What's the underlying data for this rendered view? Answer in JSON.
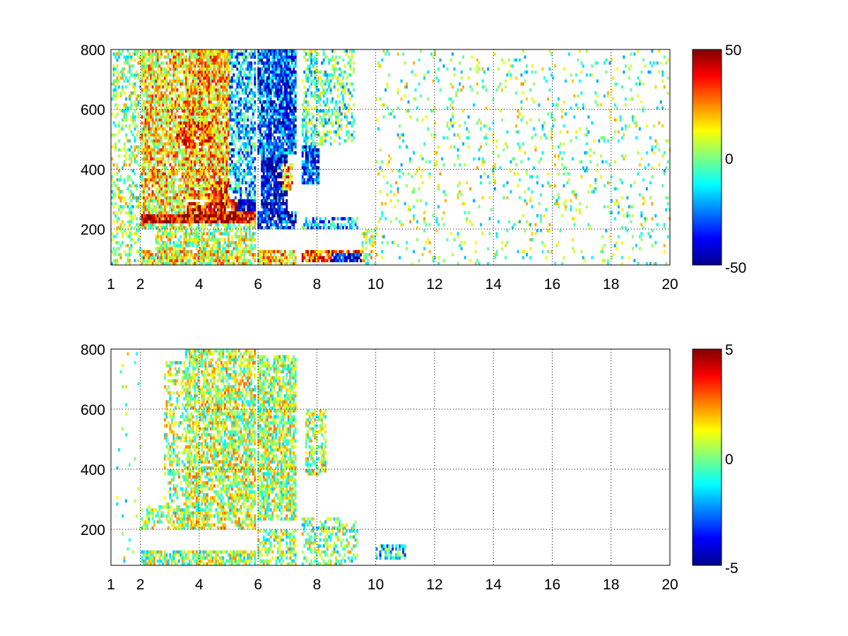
{
  "chart_data": [
    {
      "type": "heatmap",
      "title": "",
      "xlabel": "",
      "ylabel": "",
      "xlim": [
        1,
        20
      ],
      "ylim": [
        80,
        800
      ],
      "x_ticks": [
        "1",
        "2",
        "4",
        "6",
        "8",
        "10",
        "12",
        "14",
        "16",
        "18",
        "20"
      ],
      "y_ticks": [
        "200",
        "400",
        "600",
        "800"
      ],
      "grid": true,
      "colormap": "jet",
      "clim": [
        -50,
        50
      ],
      "colorbar_ticks": [
        "-50",
        "0",
        "50"
      ],
      "regions": [
        {
          "x": [
            1.0,
            2.0
          ],
          "y": [
            80,
            800
          ],
          "value": 2,
          "density": 0.35
        },
        {
          "x": [
            2.0,
            3.5
          ],
          "y": [
            300,
            800
          ],
          "value": 15,
          "density": 0.7
        },
        {
          "x": [
            3.5,
            5.8
          ],
          "y": [
            300,
            800
          ],
          "value": 18,
          "density": 0.85
        },
        {
          "x": [
            3.2,
            4.5
          ],
          "y": [
            480,
            560
          ],
          "value": 30,
          "density": 0.9
        },
        {
          "x": [
            2.0,
            3.5
          ],
          "y": [
            200,
            300
          ],
          "value": 10,
          "density": 0.8
        },
        {
          "x": [
            2.0,
            5.9
          ],
          "y": [
            225,
            255
          ],
          "value": 42,
          "density": 0.95
        },
        {
          "x": [
            3.6,
            5.9
          ],
          "y": [
            255,
            290
          ],
          "value": 38,
          "density": 0.9
        },
        {
          "x": [
            4.3,
            5.9
          ],
          "y": [
            290,
            360
          ],
          "value": 28,
          "density": 0.9
        },
        {
          "x": [
            5.0,
            5.9
          ],
          "y": [
            300,
            800
          ],
          "value": -18,
          "density": 0.6
        },
        {
          "x": [
            5.3,
            5.9
          ],
          "y": [
            265,
            300
          ],
          "value": -45,
          "density": 0.95
        },
        {
          "x": [
            2.0,
            5.9
          ],
          "y": [
            80,
            135
          ],
          "value": 12,
          "density": 0.8
        },
        {
          "x": [
            2.5,
            5.9
          ],
          "y": [
            135,
            220
          ],
          "value": 5,
          "density": 0.6
        },
        {
          "x": [
            6.0,
            7.3
          ],
          "y": [
            450,
            800
          ],
          "value": -30,
          "density": 0.85
        },
        {
          "x": [
            6.1,
            7.0
          ],
          "y": [
            260,
            450
          ],
          "value": -40,
          "density": 0.9
        },
        {
          "x": [
            6.8,
            7.2
          ],
          "y": [
            330,
            420
          ],
          "value": 25,
          "density": 0.8
        },
        {
          "x": [
            6.0,
            7.3
          ],
          "y": [
            200,
            260
          ],
          "value": -35,
          "density": 0.8
        },
        {
          "x": [
            6.0,
            7.3
          ],
          "y": [
            80,
            130
          ],
          "value": 18,
          "density": 0.8
        },
        {
          "x": [
            7.5,
            8.1
          ],
          "y": [
            350,
            480
          ],
          "value": -30,
          "density": 0.8
        },
        {
          "x": [
            7.5,
            9.3
          ],
          "y": [
            480,
            800
          ],
          "value": -5,
          "density": 0.4
        },
        {
          "x": [
            7.5,
            9.4
          ],
          "y": [
            200,
            240
          ],
          "value": -20,
          "density": 0.6
        },
        {
          "x": [
            7.5,
            9.5
          ],
          "y": [
            90,
            130
          ],
          "value": 35,
          "density": 0.85
        },
        {
          "x": [
            8.5,
            9.5
          ],
          "y": [
            95,
            120
          ],
          "value": -40,
          "density": 0.85
        },
        {
          "x": [
            9.5,
            11.5
          ],
          "y": [
            80,
            200
          ],
          "value": 5,
          "density": 0.4
        },
        {
          "x": [
            10.0,
            20.0
          ],
          "y": [
            80,
            800
          ],
          "value": 0,
          "density": 0.08
        }
      ]
    },
    {
      "type": "heatmap",
      "title": "",
      "xlabel": "",
      "ylabel": "",
      "xlim": [
        1,
        20
      ],
      "ylim": [
        80,
        800
      ],
      "x_ticks": [
        "1",
        "2",
        "4",
        "6",
        "8",
        "10",
        "12",
        "14",
        "16",
        "18",
        "20"
      ],
      "y_ticks": [
        "200",
        "400",
        "600",
        "800"
      ],
      "grid": true,
      "colormap": "jet",
      "clim": [
        -5,
        5
      ],
      "colorbar_ticks": [
        "-5",
        "0",
        "5"
      ],
      "regions": [
        {
          "x": [
            1.1,
            2.0
          ],
          "y": [
            80,
            800
          ],
          "value": 0,
          "density": 0.03
        },
        {
          "x": [
            2.0,
            3.5
          ],
          "y": [
            200,
            280
          ],
          "value": 0.5,
          "density": 0.6
        },
        {
          "x": [
            2.8,
            3.5
          ],
          "y": [
            280,
            760
          ],
          "value": 0.4,
          "density": 0.35
        },
        {
          "x": [
            3.5,
            5.9
          ],
          "y": [
            200,
            800
          ],
          "value": 0.6,
          "density": 0.65
        },
        {
          "x": [
            2.0,
            5.9
          ],
          "y": [
            80,
            130
          ],
          "value": 0.3,
          "density": 0.75
        },
        {
          "x": [
            6.0,
            7.3
          ],
          "y": [
            230,
            780
          ],
          "value": 0.4,
          "density": 0.7
        },
        {
          "x": [
            6.0,
            7.3
          ],
          "y": [
            80,
            200
          ],
          "value": 0.2,
          "density": 0.55
        },
        {
          "x": [
            7.6,
            8.3
          ],
          "y": [
            380,
            600
          ],
          "value": 0.5,
          "density": 0.5
        },
        {
          "x": [
            7.5,
            9.4
          ],
          "y": [
            80,
            240
          ],
          "value": 0.2,
          "density": 0.45
        },
        {
          "x": [
            10.0,
            11.0
          ],
          "y": [
            100,
            150
          ],
          "value": -1.5,
          "density": 0.6
        }
      ]
    }
  ]
}
